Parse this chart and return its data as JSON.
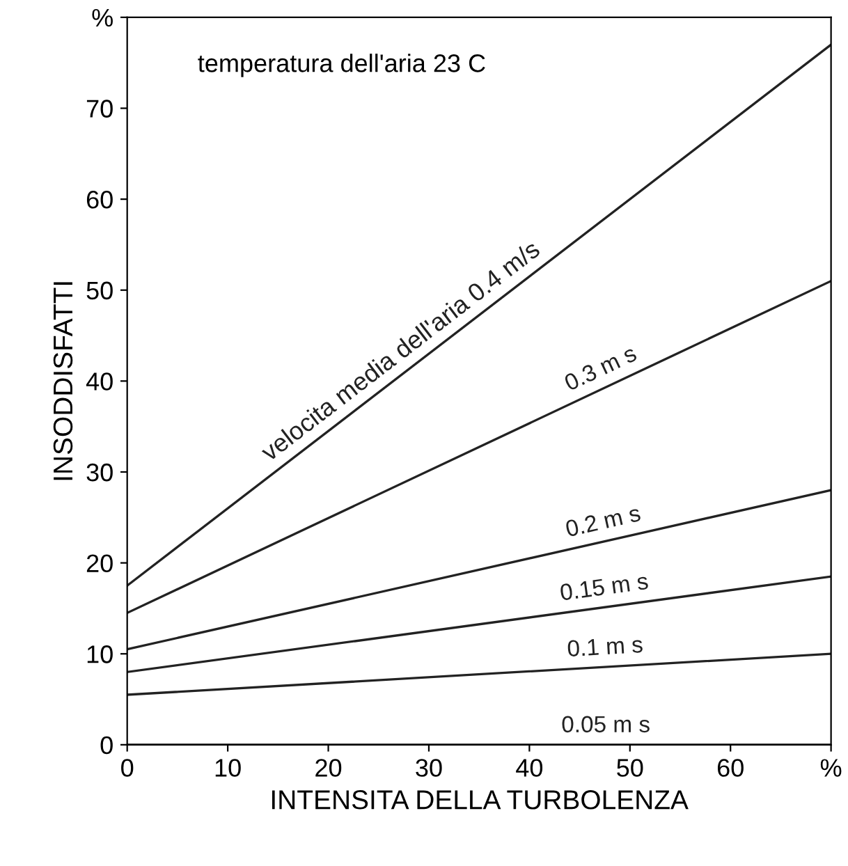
{
  "chart_data": {
    "type": "line",
    "xlabel": "INTENSITA DELLA TURBOLENZA",
    "ylabel": "INSODDISFATTI",
    "annotations": [
      "temperatura dell'aria 23 C"
    ],
    "x": [
      0,
      70
    ],
    "series": [
      {
        "name": "velocita media dell'aria 0.4 m/s",
        "color": "#222222",
        "values": [
          17.5,
          77
        ]
      },
      {
        "name": "0.3 m s",
        "color": "#222222",
        "values": [
          14.5,
          51
        ]
      },
      {
        "name": "0.2 m s",
        "color": "#222222",
        "values": [
          10.5,
          28
        ]
      },
      {
        "name": "0.15 m s",
        "color": "#222222",
        "values": [
          8,
          18.5
        ]
      },
      {
        "name": "0.1 m s",
        "color": "#222222",
        "values": [
          5.5,
          10
        ]
      },
      {
        "name": "0.05 m s",
        "color": "#222222",
        "values": [
          0,
          0
        ]
      }
    ],
    "xlim": [
      0,
      70
    ],
    "ylim": [
      0,
      80
    ],
    "xticks": [
      0,
      10,
      20,
      30,
      40,
      50,
      60,
      {
        "value": 70,
        "label": "%"
      }
    ],
    "yticks": [
      0,
      10,
      20,
      30,
      40,
      50,
      60,
      70,
      {
        "value": 80,
        "label": "%"
      }
    ],
    "grid": false,
    "legend": false,
    "marker": "none",
    "line_style": "solid"
  }
}
